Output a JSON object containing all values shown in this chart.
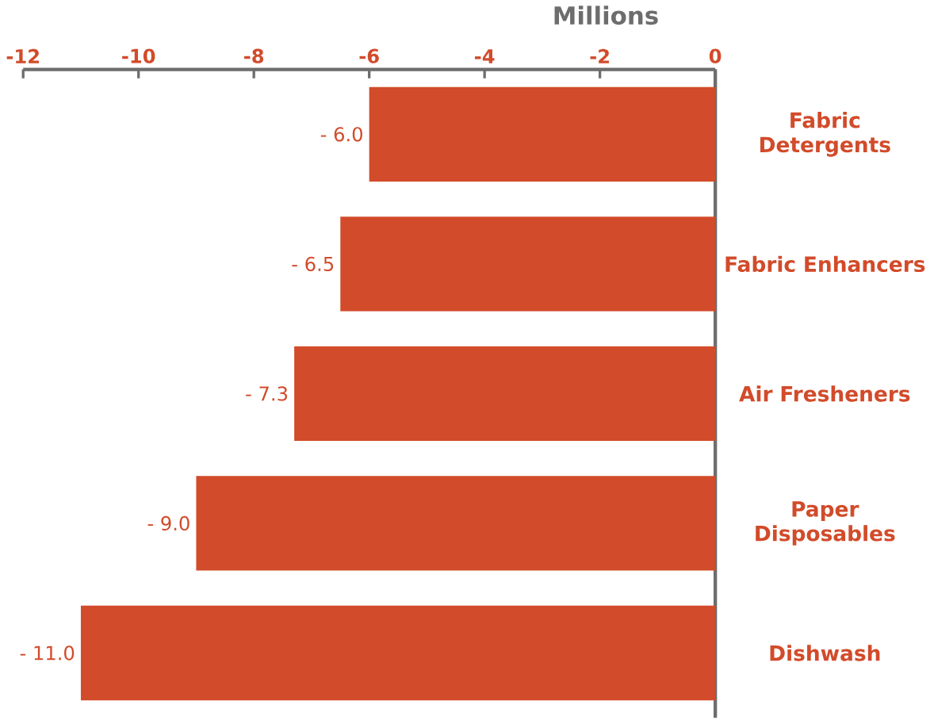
{
  "chart_data": {
    "type": "bar",
    "orientation": "horizontal",
    "xlabel": "Millions",
    "categories": [
      "Fabric Detergents",
      "Fabric Enhancers",
      "Air Fresheners",
      "Paper Disposables",
      "Dishwash"
    ],
    "values": [
      -6.0,
      -6.5,
      -7.3,
      -9.0,
      -11.0
    ],
    "value_labels": [
      "- 6.0",
      "- 6.5",
      "- 7.3",
      "- 9.0",
      "- 11.0"
    ],
    "color": "#d24b2a",
    "xlim": [
      -12,
      0
    ],
    "xticks": [
      -12,
      -10,
      -8,
      -6,
      -4,
      -2,
      0
    ]
  }
}
